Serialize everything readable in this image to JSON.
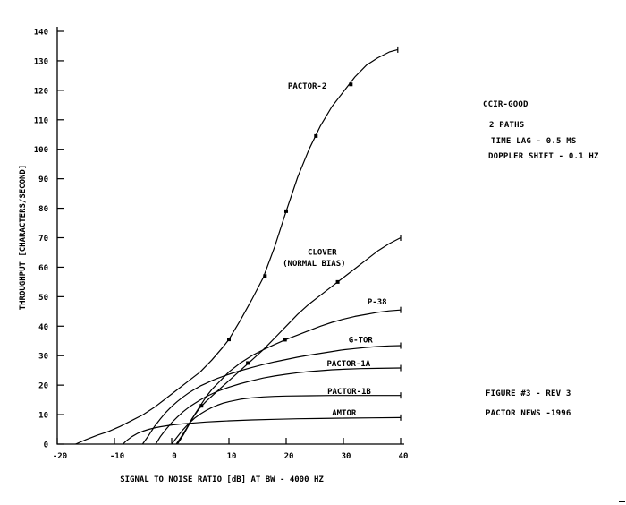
{
  "colors": {
    "ink": "#000000",
    "background": "#ffffff"
  },
  "chart_data": {
    "type": "line",
    "title": "",
    "xlabel": "SIGNAL TO NOISE RATIO [dB] AT BW - 4000 HZ",
    "ylabel": "THROUGHPUT [CHARACTERS/SECOND]",
    "xlim": [
      -20,
      40
    ],
    "ylim": [
      0,
      140
    ],
    "x_ticks": [
      -20,
      -10,
      0,
      10,
      20,
      30,
      40
    ],
    "y_ticks": [
      0,
      10,
      20,
      30,
      40,
      50,
      60,
      70,
      80,
      90,
      100,
      110,
      120,
      130,
      140
    ],
    "grid": false,
    "legend": "inline-curve-labels",
    "series": [
      {
        "name": "PACTOR-2",
        "points": [
          [
            -16.8,
            0
          ],
          [
            -15,
            1.5
          ],
          [
            -13,
            3
          ],
          [
            -11,
            4.3
          ],
          [
            -9,
            6
          ],
          [
            -7,
            8
          ],
          [
            -5,
            10
          ],
          [
            -3,
            12.5
          ],
          [
            -1,
            15.5
          ],
          [
            1,
            18.5
          ],
          [
            3,
            21.5
          ],
          [
            5,
            24.5
          ],
          [
            7,
            28.5
          ],
          [
            9,
            33
          ],
          [
            10,
            35.5
          ],
          [
            12,
            42
          ],
          [
            14,
            49
          ],
          [
            16,
            56.5
          ],
          [
            18,
            67
          ],
          [
            20,
            79
          ],
          [
            22,
            90.5
          ],
          [
            24,
            100
          ],
          [
            26,
            108
          ],
          [
            28,
            114.5
          ],
          [
            30,
            119.5
          ],
          [
            32,
            124.5
          ],
          [
            34,
            128.5
          ],
          [
            36,
            131
          ],
          [
            38,
            133
          ],
          [
            39.5,
            133.8
          ]
        ],
        "markers": [
          [
            10,
            35.5
          ],
          [
            16.3,
            57
          ],
          [
            20,
            79
          ],
          [
            25.2,
            104.5
          ],
          [
            31.3,
            122
          ]
        ],
        "label_lines": [
          {
            "text": "PACTOR-2",
            "at": [
              20.3,
              121.5
            ],
            "anchor": "start"
          }
        ]
      },
      {
        "name": "CLOVER",
        "points": [
          [
            0.8,
            0
          ],
          [
            1.5,
            2
          ],
          [
            2.5,
            5
          ],
          [
            3.5,
            8.5
          ],
          [
            4.8,
            12
          ],
          [
            6,
            14.5
          ],
          [
            8,
            18
          ],
          [
            10,
            21.5
          ],
          [
            12,
            25
          ],
          [
            14,
            28.5
          ],
          [
            16,
            32
          ],
          [
            18,
            36
          ],
          [
            20,
            40
          ],
          [
            22,
            44
          ],
          [
            24,
            47.5
          ],
          [
            26,
            50.5
          ],
          [
            28,
            53.5
          ],
          [
            30,
            56.5
          ],
          [
            32,
            59.5
          ],
          [
            34,
            62.5
          ],
          [
            36,
            65.5
          ],
          [
            38,
            68
          ],
          [
            40,
            70
          ]
        ],
        "markers": [
          [
            5.2,
            13
          ],
          [
            13.3,
            27.5
          ],
          [
            29,
            55
          ]
        ],
        "label_lines": [
          {
            "text": "CLOVER",
            "at": [
              26.3,
              65.2
            ],
            "anchor": "middle"
          },
          {
            "text": "(NORMAL BIAS)",
            "at": [
              24.9,
              61.3
            ],
            "anchor": "middle"
          }
        ]
      },
      {
        "name": "P-38",
        "points": [
          [
            1,
            0
          ],
          [
            2,
            3
          ],
          [
            3,
            6.5
          ],
          [
            4,
            10
          ],
          [
            5,
            13
          ],
          [
            6,
            16
          ],
          [
            7,
            18.5
          ],
          [
            8,
            20.5
          ],
          [
            9,
            22.5
          ],
          [
            10,
            24.5
          ],
          [
            12,
            27.5
          ],
          [
            14,
            30
          ],
          [
            16,
            32
          ],
          [
            18,
            33.8
          ],
          [
            20,
            35.5
          ],
          [
            22,
            37
          ],
          [
            24,
            38.5
          ],
          [
            26,
            40
          ],
          [
            28,
            41.3
          ],
          [
            30,
            42.4
          ],
          [
            32,
            43.3
          ],
          [
            34,
            44
          ],
          [
            36,
            44.7
          ],
          [
            38,
            45.2
          ],
          [
            40,
            45.5
          ]
        ],
        "markers": [
          [
            19.8,
            35.4
          ]
        ],
        "label_lines": [
          {
            "text": "P-38",
            "at": [
              34.2,
              48.3
            ],
            "anchor": "start"
          }
        ]
      },
      {
        "name": "G-TOR",
        "points": [
          [
            -5.1,
            0
          ],
          [
            -4,
            3
          ],
          [
            -3,
            6
          ],
          [
            -2,
            8.5
          ],
          [
            -1,
            10.8
          ],
          [
            0,
            12.8
          ],
          [
            1,
            14.5
          ],
          [
            2,
            16
          ],
          [
            3,
            17.4
          ],
          [
            4,
            18.6
          ],
          [
            5,
            19.7
          ],
          [
            6,
            20.6
          ],
          [
            7,
            21.5
          ],
          [
            8,
            22.3
          ],
          [
            10,
            23.7
          ],
          [
            12,
            24.9
          ],
          [
            14,
            26
          ],
          [
            16,
            27
          ],
          [
            18,
            27.9
          ],
          [
            20,
            28.7
          ],
          [
            22,
            29.5
          ],
          [
            24,
            30.2
          ],
          [
            26,
            30.8
          ],
          [
            28,
            31.4
          ],
          [
            30,
            32
          ],
          [
            32,
            32.4
          ],
          [
            34,
            32.8
          ],
          [
            36,
            33.1
          ],
          [
            38,
            33.3
          ],
          [
            40,
            33.4
          ]
        ],
        "markers": [],
        "label_lines": [
          {
            "text": "G-TOR",
            "at": [
              30.9,
              35.4
            ],
            "anchor": "start"
          }
        ]
      },
      {
        "name": "PACTOR-1A",
        "points": [
          [
            -2.8,
            0
          ],
          [
            -2,
            2.5
          ],
          [
            -1,
            5
          ],
          [
            0,
            7.3
          ],
          [
            1,
            9.2
          ],
          [
            2,
            11
          ],
          [
            3,
            12.5
          ],
          [
            4,
            13.8
          ],
          [
            5,
            15
          ],
          [
            6,
            16.1
          ],
          [
            7,
            17
          ],
          [
            8,
            17.9
          ],
          [
            10,
            19.3
          ],
          [
            12,
            20.5
          ],
          [
            14,
            21.5
          ],
          [
            16,
            22.4
          ],
          [
            18,
            23.1
          ],
          [
            20,
            23.7
          ],
          [
            22,
            24.2
          ],
          [
            24,
            24.6
          ],
          [
            26,
            24.9
          ],
          [
            28,
            25.2
          ],
          [
            30,
            25.4
          ],
          [
            33,
            25.6
          ],
          [
            36,
            25.7
          ],
          [
            40,
            25.8
          ]
        ],
        "markers": [],
        "label_lines": [
          {
            "text": "PACTOR-1A",
            "at": [
              27.1,
              27.4
            ],
            "anchor": "start"
          }
        ]
      },
      {
        "name": "PACTOR-1B",
        "points": [
          [
            0,
            0
          ],
          [
            0.8,
            2
          ],
          [
            1.8,
            4.5
          ],
          [
            3,
            7
          ],
          [
            4,
            8.8
          ],
          [
            5,
            10.2
          ],
          [
            6,
            11.4
          ],
          [
            7,
            12.4
          ],
          [
            8,
            13.2
          ],
          [
            9,
            13.9
          ],
          [
            10,
            14.4
          ],
          [
            12,
            15.2
          ],
          [
            14,
            15.7
          ],
          [
            16,
            16
          ],
          [
            18,
            16.2
          ],
          [
            20,
            16.3
          ],
          [
            24,
            16.4
          ],
          [
            28,
            16.5
          ],
          [
            32,
            16.5
          ],
          [
            36,
            16.5
          ],
          [
            40,
            16.5
          ]
        ],
        "markers": [],
        "label_lines": [
          {
            "text": "PACTOR-1B",
            "at": [
              27.2,
              17.9
            ],
            "anchor": "start"
          }
        ]
      },
      {
        "name": "AMTOR",
        "points": [
          [
            -8.5,
            0
          ],
          [
            -8,
            1
          ],
          [
            -7,
            2.5
          ],
          [
            -6,
            3.6
          ],
          [
            -5,
            4.4
          ],
          [
            -4,
            5
          ],
          [
            -3,
            5.5
          ],
          [
            -2,
            5.9
          ],
          [
            -1,
            6.2
          ],
          [
            0,
            6.5
          ],
          [
            2,
            6.9
          ],
          [
            4,
            7.2
          ],
          [
            6,
            7.5
          ],
          [
            8,
            7.7
          ],
          [
            10,
            7.9
          ],
          [
            14,
            8.2
          ],
          [
            18,
            8.4
          ],
          [
            22,
            8.6
          ],
          [
            26,
            8.7
          ],
          [
            30,
            8.8
          ],
          [
            35,
            8.9
          ],
          [
            40,
            9
          ]
        ],
        "markers": [],
        "label_lines": [
          {
            "text": "AMTOR",
            "at": [
              28,
              10.6
            ],
            "anchor": "start"
          }
        ]
      }
    ]
  },
  "annotations": {
    "channel_model": "CCIR-GOOD",
    "paths": "2 PATHS",
    "time_lag": "TIME LAG - 0.5 MS",
    "doppler_shift": "DOPPLER SHIFT - 0.1 HZ",
    "figure_ref": "FIGURE #3 - REV 3",
    "source": "PACTOR NEWS -1996"
  }
}
